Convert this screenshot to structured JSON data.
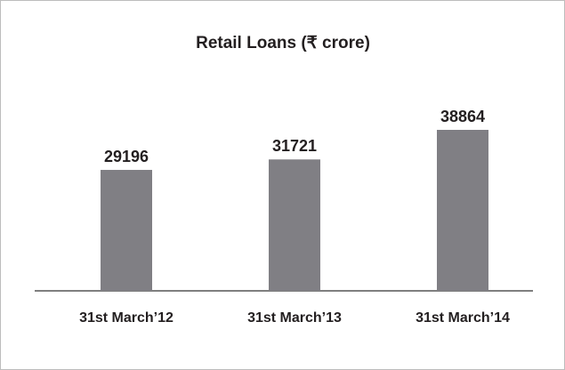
{
  "chart_data": {
    "type": "bar",
    "title": "Retail Loans (₹ crore)",
    "categories": [
      "31st March’12",
      "31st March’13",
      "31st March’14"
    ],
    "values": [
      29196,
      31721,
      38864
    ],
    "color": "#807f84"
  }
}
